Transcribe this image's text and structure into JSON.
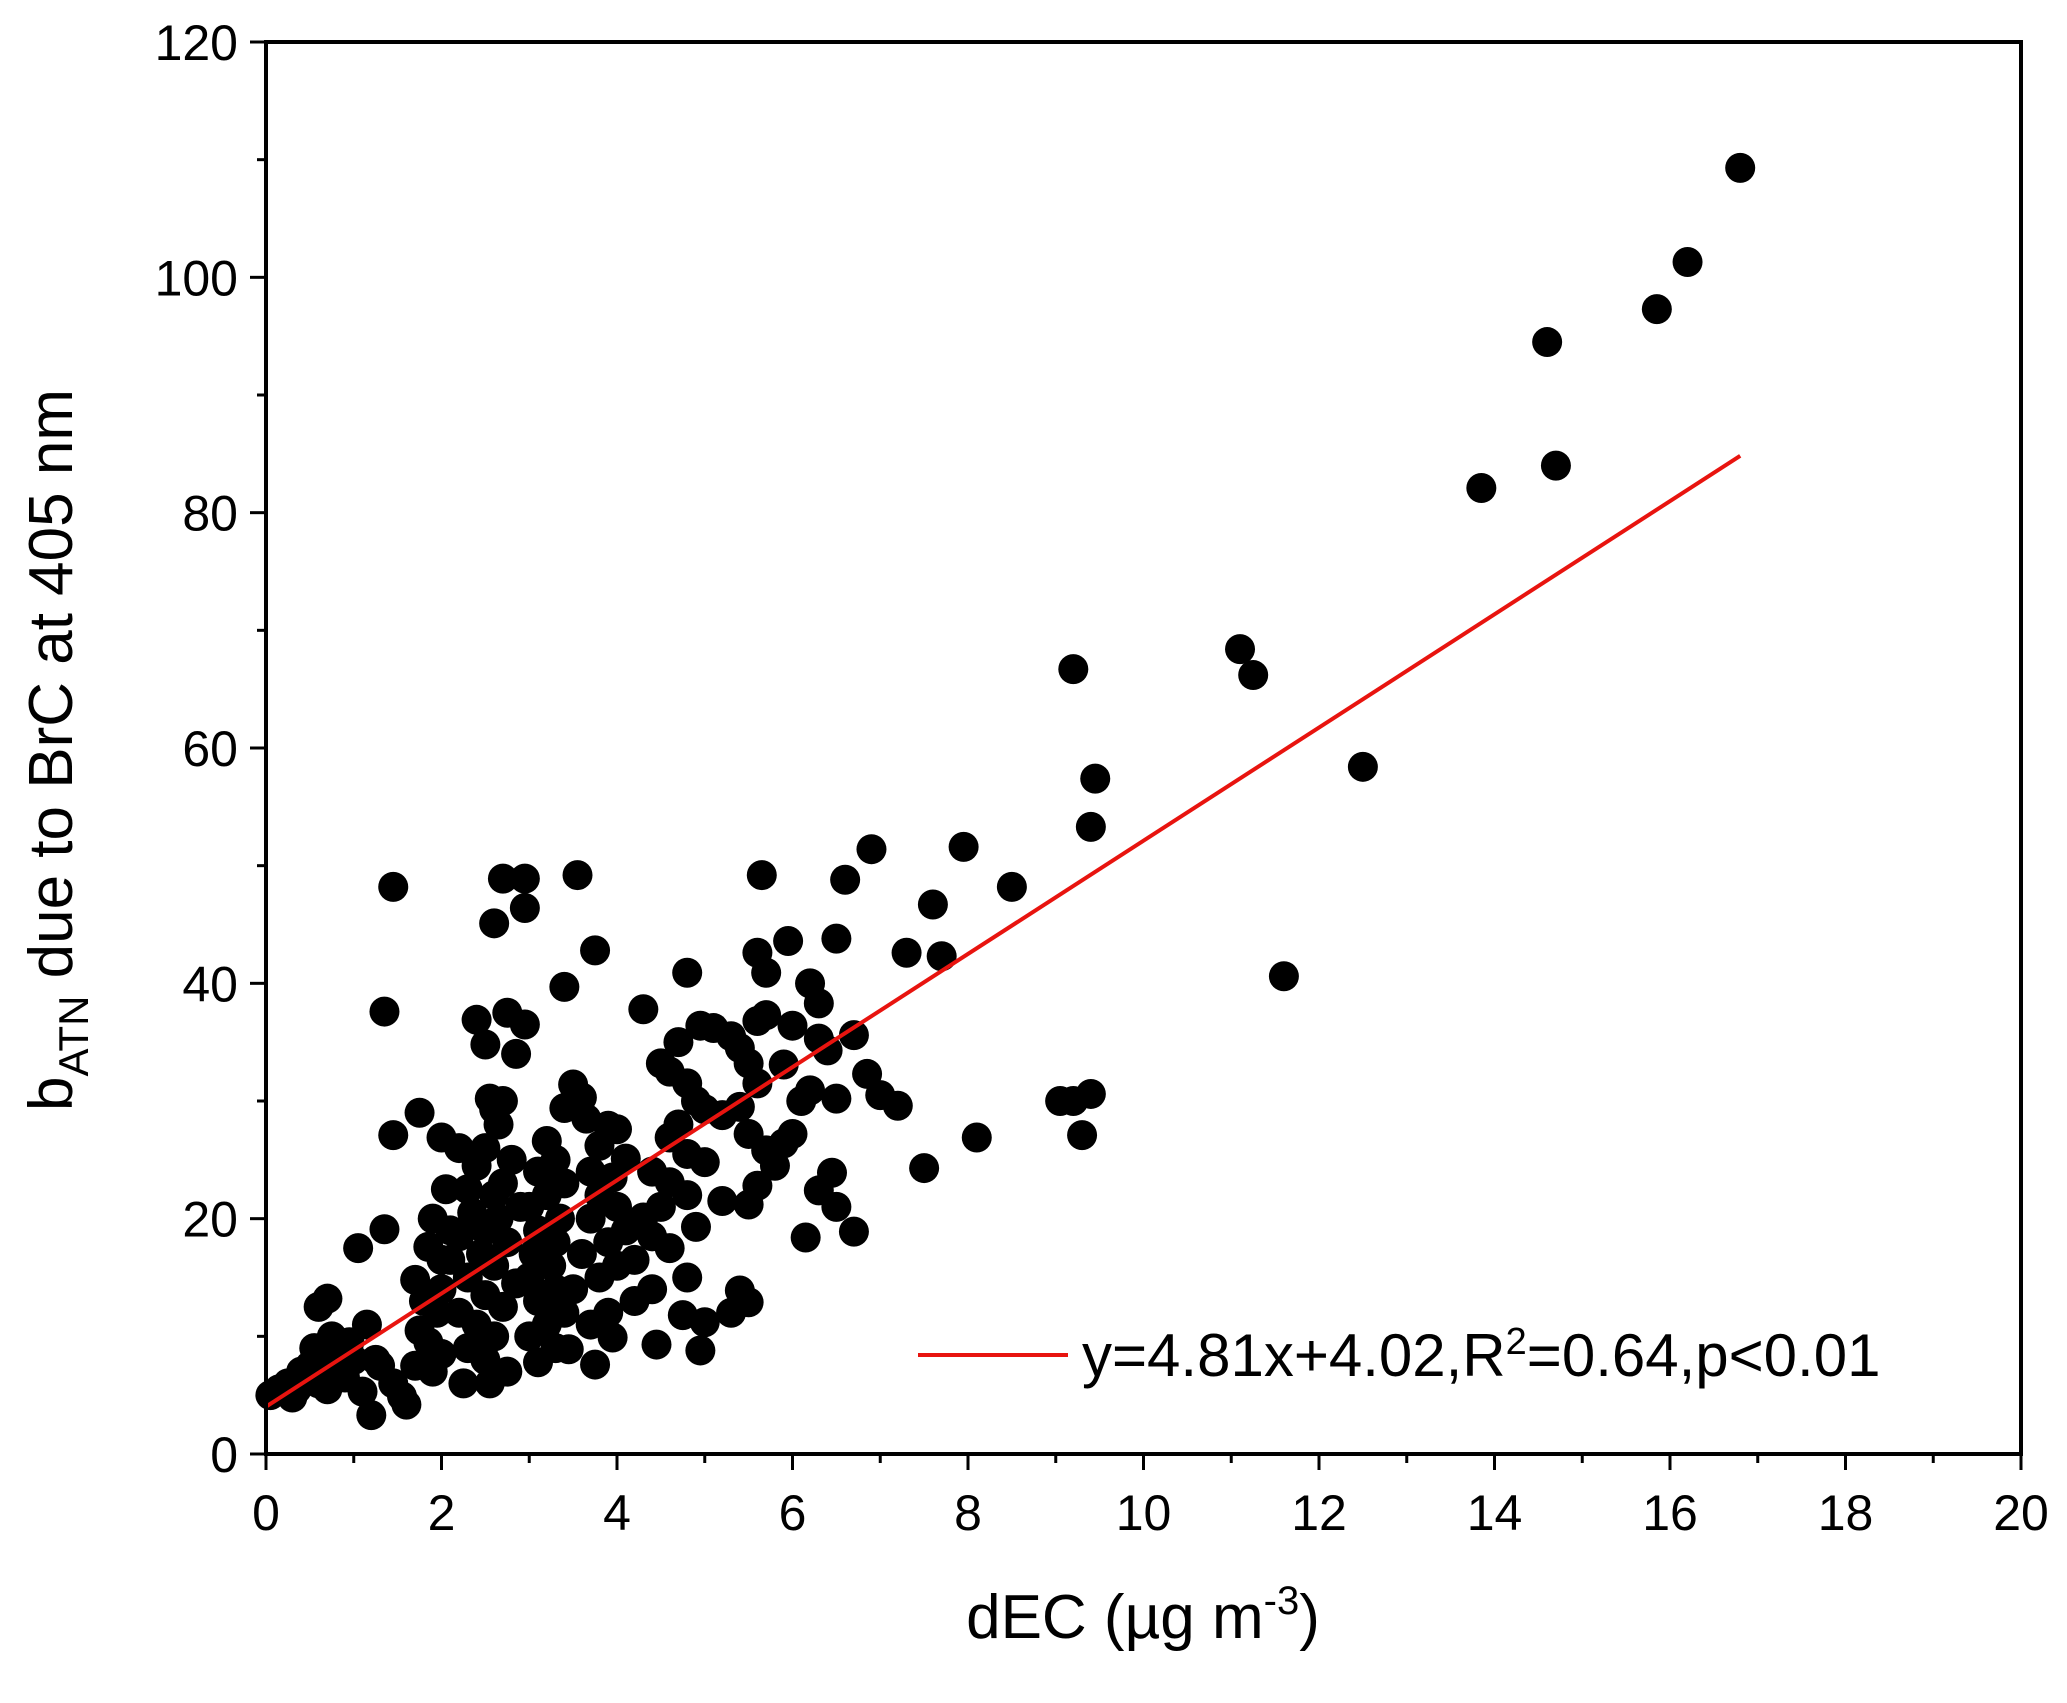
{
  "chart_data": {
    "type": "scatter",
    "xlim": [
      0,
      20
    ],
    "ylim": [
      0,
      120
    ],
    "x_ticks": [
      0,
      2,
      4,
      6,
      8,
      10,
      12,
      14,
      16,
      18,
      20
    ],
    "y_ticks": [
      0,
      20,
      40,
      60,
      80,
      100,
      120
    ],
    "grid": false,
    "xlabel": {
      "main": "dEC (µg m",
      "sup": "-3",
      "end": ")"
    },
    "ylabel": {
      "main": "b",
      "sub": "ATN",
      "rest": " due to BrC at 405 nm"
    },
    "legend": {
      "position": "bottom-right",
      "pre": "y=4.81x+4.02,R",
      "sup": "2",
      "post": "=0.64,p<0.01"
    },
    "fit": {
      "slope": 4.81,
      "intercept": 4.02,
      "x_range": [
        0,
        16.8
      ],
      "color": "#e8140f"
    },
    "point_color": "#000000",
    "points": [
      [
        16.8,
        109.3
      ],
      [
        16.2,
        101.3
      ],
      [
        15.85,
        97.3
      ],
      [
        14.6,
        94.5
      ],
      [
        14.7,
        84.0
      ],
      [
        13.85,
        82.1
      ],
      [
        11.1,
        68.4
      ],
      [
        11.25,
        66.2
      ],
      [
        12.5,
        58.4
      ],
      [
        11.6,
        40.6
      ],
      [
        9.2,
        66.7
      ],
      [
        9.45,
        57.4
      ],
      [
        9.4,
        53.3
      ],
      [
        9.05,
        30.0
      ],
      [
        9.4,
        30.6
      ],
      [
        9.3,
        27.1
      ],
      [
        9.2,
        30.0
      ],
      [
        8.5,
        48.2
      ],
      [
        7.95,
        51.6
      ],
      [
        7.6,
        46.7
      ],
      [
        7.3,
        42.6
      ],
      [
        7.7,
        42.3
      ],
      [
        6.9,
        51.4
      ],
      [
        6.6,
        48.8
      ],
      [
        8.1,
        26.9
      ],
      [
        7.5,
        24.3
      ],
      [
        7.2,
        29.6
      ],
      [
        6.85,
        32.3
      ],
      [
        7.0,
        30.5
      ],
      [
        6.5,
        43.8
      ],
      [
        5.95,
        43.6
      ],
      [
        5.6,
        42.6
      ],
      [
        5.65,
        49.2
      ],
      [
        5.7,
        40.9
      ],
      [
        6.2,
        40.0
      ],
      [
        6.3,
        38.3
      ],
      [
        6.7,
        35.6
      ],
      [
        6.0,
        36.4
      ],
      [
        6.3,
        35.3
      ],
      [
        6.4,
        34.3
      ],
      [
        6.5,
        30.2
      ],
      [
        6.2,
        30.9
      ],
      [
        6.1,
        30.0
      ],
      [
        6.0,
        27.2
      ],
      [
        5.9,
        26.4
      ],
      [
        6.45,
        23.9
      ],
      [
        6.3,
        22.4
      ],
      [
        6.5,
        21.0
      ],
      [
        6.7,
        18.9
      ],
      [
        6.15,
        18.4
      ],
      [
        5.6,
        36.8
      ],
      [
        5.7,
        37.3
      ],
      [
        5.4,
        34.5
      ],
      [
        5.5,
        33.2
      ],
      [
        5.9,
        33.1
      ],
      [
        5.6,
        31.5
      ],
      [
        5.4,
        29.5
      ],
      [
        5.5,
        27.2
      ],
      [
        5.7,
        25.8
      ],
      [
        5.8,
        24.5
      ],
      [
        5.6,
        22.8
      ],
      [
        5.2,
        21.5
      ],
      [
        5.5,
        21.2
      ],
      [
        5.4,
        13.9
      ],
      [
        5.5,
        12.9
      ],
      [
        5.3,
        12.0
      ],
      [
        4.95,
        8.8
      ],
      [
        5.0,
        11.2
      ],
      [
        4.8,
        40.9
      ],
      [
        4.95,
        36.4
      ],
      [
        5.1,
        36.2
      ],
      [
        5.3,
        35.5
      ],
      [
        4.7,
        35.0
      ],
      [
        4.5,
        33.2
      ],
      [
        4.6,
        32.5
      ],
      [
        4.8,
        31.5
      ],
      [
        4.9,
        30.0
      ],
      [
        5.0,
        29.3
      ],
      [
        5.2,
        28.8
      ],
      [
        4.7,
        28.0
      ],
      [
        4.6,
        26.9
      ],
      [
        4.8,
        25.5
      ],
      [
        5.0,
        24.8
      ],
      [
        4.4,
        24.0
      ],
      [
        4.6,
        23.1
      ],
      [
        4.8,
        22.0
      ],
      [
        4.5,
        21.0
      ],
      [
        4.3,
        20.1
      ],
      [
        4.9,
        19.3
      ],
      [
        4.4,
        18.5
      ],
      [
        4.6,
        17.5
      ],
      [
        4.2,
        16.5
      ],
      [
        4.8,
        15.0
      ],
      [
        4.4,
        14.0
      ],
      [
        4.75,
        11.8
      ],
      [
        4.45,
        9.3
      ],
      [
        4.3,
        37.8
      ],
      [
        3.9,
        27.9
      ],
      [
        4.0,
        27.6
      ],
      [
        3.8,
        26.2
      ],
      [
        4.1,
        25.1
      ],
      [
        3.95,
        23.5
      ],
      [
        3.7,
        24.0
      ],
      [
        3.6,
        30.3
      ],
      [
        3.5,
        31.4
      ],
      [
        3.4,
        29.4
      ],
      [
        3.8,
        22.0
      ],
      [
        4.0,
        21.0
      ],
      [
        3.7,
        20.0
      ],
      [
        4.1,
        19.0
      ],
      [
        3.9,
        18.0
      ],
      [
        3.6,
        17.0
      ],
      [
        4.0,
        16.0
      ],
      [
        3.8,
        15.0
      ],
      [
        3.5,
        14.0
      ],
      [
        4.2,
        13.0
      ],
      [
        3.9,
        12.0
      ],
      [
        3.7,
        11.0
      ],
      [
        3.95,
        9.9
      ],
      [
        3.75,
        7.6
      ],
      [
        3.55,
        49.2
      ],
      [
        3.75,
        42.8
      ],
      [
        3.4,
        39.7
      ],
      [
        3.65,
        28.5
      ],
      [
        3.2,
        26.6
      ],
      [
        3.3,
        25.0
      ],
      [
        3.1,
        24.0
      ],
      [
        3.4,
        23.0
      ],
      [
        3.2,
        22.0
      ],
      [
        3.0,
        21.0
      ],
      [
        3.35,
        20.0
      ],
      [
        3.1,
        19.0
      ],
      [
        3.3,
        18.0
      ],
      [
        3.05,
        17.0
      ],
      [
        3.25,
        16.0
      ],
      [
        3.0,
        15.0
      ],
      [
        3.3,
        14.0
      ],
      [
        3.1,
        13.0
      ],
      [
        3.4,
        12.0
      ],
      [
        3.2,
        11.0
      ],
      [
        3.0,
        10.0
      ],
      [
        3.3,
        9.0
      ],
      [
        3.1,
        7.8
      ],
      [
        3.45,
        8.9
      ],
      [
        2.95,
        48.9
      ],
      [
        2.7,
        48.9
      ],
      [
        2.95,
        46.4
      ],
      [
        2.6,
        45.1
      ],
      [
        2.75,
        37.5
      ],
      [
        2.95,
        36.5
      ],
      [
        2.4,
        36.9
      ],
      [
        2.5,
        34.8
      ],
      [
        2.85,
        34.0
      ],
      [
        2.55,
        30.2
      ],
      [
        2.7,
        30.0
      ],
      [
        2.6,
        29.3
      ],
      [
        2.65,
        28.0
      ],
      [
        2.5,
        26.0
      ],
      [
        2.8,
        25.0
      ],
      [
        2.4,
        24.5
      ],
      [
        2.7,
        23.0
      ],
      [
        2.3,
        22.5
      ],
      [
        2.6,
        22.0
      ],
      [
        2.9,
        21.0
      ],
      [
        2.35,
        20.5
      ],
      [
        2.65,
        20.0
      ],
      [
        2.5,
        19.0
      ],
      [
        2.2,
        18.5
      ],
      [
        2.75,
        18.0
      ],
      [
        2.45,
        17.0
      ],
      [
        2.1,
        16.5
      ],
      [
        2.6,
        16.0
      ],
      [
        2.3,
        15.0
      ],
      [
        2.85,
        14.5
      ],
      [
        2.0,
        14.0
      ],
      [
        2.5,
        13.5
      ],
      [
        2.7,
        12.5
      ],
      [
        2.2,
        12.0
      ],
      [
        2.4,
        11.0
      ],
      [
        2.6,
        10.0
      ],
      [
        2.3,
        9.0
      ],
      [
        2.5,
        8.0
      ],
      [
        2.75,
        7.0
      ],
      [
        2.25,
        6.0
      ],
      [
        2.55,
        6.0
      ],
      [
        2.0,
        26.9
      ],
      [
        2.2,
        26.0
      ],
      [
        1.75,
        29.0
      ],
      [
        2.05,
        22.5
      ],
      [
        1.9,
        20.0
      ],
      [
        2.1,
        19.0
      ],
      [
        1.85,
        17.6
      ],
      [
        2.0,
        16.5
      ],
      [
        1.7,
        14.8
      ],
      [
        1.8,
        13.0
      ],
      [
        1.95,
        12.0
      ],
      [
        1.75,
        10.5
      ],
      [
        1.85,
        9.5
      ],
      [
        2.0,
        8.5
      ],
      [
        1.7,
        7.5
      ],
      [
        1.9,
        7.0
      ],
      [
        1.45,
        48.2
      ],
      [
        1.35,
        37.6
      ],
      [
        1.45,
        27.1
      ],
      [
        1.35,
        19.1
      ],
      [
        1.05,
        17.5
      ],
      [
        1.55,
        4.9
      ],
      [
        1.6,
        4.2
      ],
      [
        1.3,
        7.5
      ],
      [
        1.45,
        6.0
      ],
      [
        1.15,
        11.0
      ],
      [
        1.25,
        8.0
      ],
      [
        1.2,
        3.3
      ],
      [
        1.1,
        5.3
      ],
      [
        0.95,
        9.5
      ],
      [
        0.85,
        8.5
      ],
      [
        0.7,
        13.2
      ],
      [
        0.6,
        12.5
      ],
      [
        0.75,
        10.0
      ],
      [
        0.55,
        9.0
      ],
      [
        0.65,
        8.0
      ],
      [
        0.5,
        7.5
      ],
      [
        0.8,
        7.0
      ],
      [
        0.45,
        6.5
      ],
      [
        0.6,
        6.0
      ],
      [
        0.35,
        5.5
      ],
      [
        0.7,
        5.5
      ],
      [
        0.25,
        6.0
      ],
      [
        0.15,
        5.5
      ],
      [
        0.05,
        5.0
      ],
      [
        0.4,
        7.0
      ],
      [
        0.9,
        6.5
      ],
      [
        1.0,
        8.0
      ],
      [
        0.3,
        4.8
      ]
    ]
  }
}
